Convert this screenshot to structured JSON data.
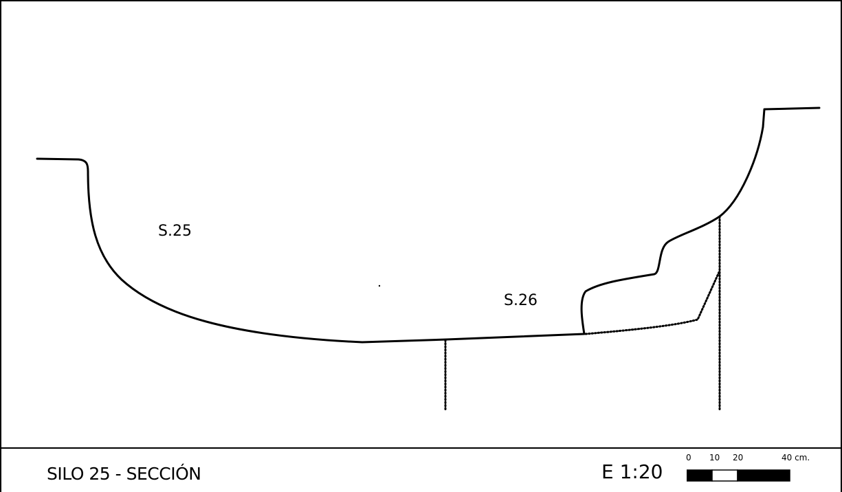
{
  "labels": {
    "feature_s25": "S.25",
    "feature_s26": "S.26"
  },
  "footer": {
    "title": "SILO 25 - SECCIÓN",
    "scale": "E 1:20"
  },
  "scale_bar": {
    "ticks": [
      "0",
      "10",
      "20",
      "40 cm."
    ],
    "segments_cm": [
      10,
      10,
      20
    ],
    "segment_fills": [
      "#000000",
      "#ffffff",
      "#000000"
    ]
  },
  "colors": {
    "ink": "#000000",
    "paper": "#ffffff"
  }
}
